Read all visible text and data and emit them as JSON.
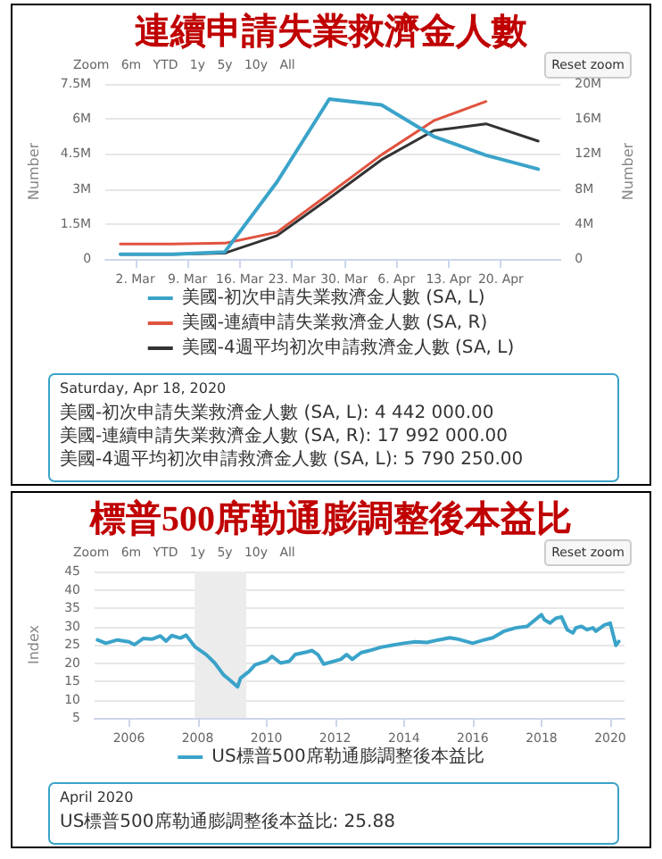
{
  "chart_data": [
    {
      "type": "line",
      "title": "連續申請失業救濟金人數",
      "ylabel": "Number",
      "y2label": "Number",
      "x": [
        "2020-02-29",
        "2020-03-07",
        "2020-03-14",
        "2020-03-21",
        "2020-03-28",
        "2020-04-04",
        "2020-04-11",
        "2020-04-18",
        "2020-04-25"
      ],
      "series": [
        {
          "name": "美國-初次申請失業救濟金人數 (SA, L)",
          "color": "#3aa3c9",
          "values": [
            200000,
            200000,
            300000,
            3300000,
            6850000,
            6600000,
            5250000,
            4442000,
            3850000
          ]
        },
        {
          "name": "美國-連續申請失業救濟金人數 (SA, R)",
          "color": "#e0533f",
          "axis": "y2",
          "values": [
            1700000,
            1700000,
            1800000,
            3050000,
            7450000,
            11900000,
            15800000,
            17992000,
            null
          ]
        },
        {
          "name": "美國-4週平均初次申請救濟金人數 (SA, L)",
          "color": "#333333",
          "values": [
            200000,
            200000,
            250000,
            1000000,
            2600000,
            4250000,
            5500000,
            5790250,
            5050000
          ]
        }
      ],
      "xlim": [
        "2020-02-27",
        "2020-04-28"
      ],
      "xticks": [
        {
          "value": "2020-03-02",
          "label": "2. Mar"
        },
        {
          "value": "2020-03-09",
          "label": "9. Mar"
        },
        {
          "value": "2020-03-16",
          "label": "16. Mar"
        },
        {
          "value": "2020-03-23",
          "label": "23. Mar"
        },
        {
          "value": "2020-03-30",
          "label": "30. Mar"
        },
        {
          "value": "2020-04-06",
          "label": "6. Apr"
        },
        {
          "value": "2020-04-13",
          "label": "13. Apr"
        },
        {
          "value": "2020-04-20",
          "label": "20. Apr"
        }
      ],
      "ylim": [
        0,
        7500000
      ],
      "yticks": [
        {
          "value": 0,
          "label": "0"
        },
        {
          "value": 1500000,
          "label": "1.5M"
        },
        {
          "value": 3000000,
          "label": "3M"
        },
        {
          "value": 4500000,
          "label": "4.5M"
        },
        {
          "value": 6000000,
          "label": "6M"
        },
        {
          "value": 7500000,
          "label": "7.5M"
        }
      ],
      "y2lim": [
        0,
        20000000
      ],
      "y2ticks": [
        {
          "value": 0,
          "label": "0"
        },
        {
          "value": 4000000,
          "label": "4M"
        },
        {
          "value": 8000000,
          "label": "8M"
        },
        {
          "value": 12000000,
          "label": "12M"
        },
        {
          "value": 16000000,
          "label": "16M"
        },
        {
          "value": 20000000,
          "label": "20M"
        }
      ],
      "grid": "y",
      "legend": "bottom",
      "marker": "none",
      "line_style": "solid",
      "annotations": [
        "Zoom   6m   YTD   1y   5y   10y   All",
        "Reset zoom",
        "Saturday, Apr 18, 2020",
        "美國-初次申請失業救濟金人數 (SA, L): 4 442 000.00",
        "美國-連續申請失業救濟金人數 (SA, R): 17 992 000.00",
        "美國-4週平均初次申請救濟金人數 (SA, L): 5 790 250.00"
      ]
    },
    {
      "type": "line",
      "title": "標普500席勒通膨調整後本益比",
      "ylabel": "Index",
      "x": [
        "2005-02",
        "2005-05",
        "2005-09",
        "2006-01",
        "2006-03",
        "2006-06",
        "2006-09",
        "2006-12",
        "2007-02",
        "2007-04",
        "2007-07",
        "2007-09",
        "2007-12",
        "2008-04",
        "2008-07",
        "2008-10",
        "2008-12",
        "2009-03",
        "2009-04",
        "2009-07",
        "2009-09",
        "2010-01",
        "2010-03",
        "2010-06",
        "2010-09",
        "2010-11",
        "2011-03",
        "2011-05",
        "2011-07",
        "2011-09",
        "2012-03",
        "2012-05",
        "2012-07",
        "2012-10",
        "2013-01",
        "2013-05",
        "2013-09",
        "2014-01",
        "2014-05",
        "2014-09",
        "2015-01",
        "2015-05",
        "2015-08",
        "2016-01",
        "2016-05",
        "2016-08",
        "2016-12",
        "2017-04",
        "2017-08",
        "2017-10",
        "2018-01",
        "2018-02",
        "2018-04",
        "2018-06",
        "2018-08",
        "2018-10",
        "2018-12",
        "2019-01",
        "2019-03",
        "2019-05",
        "2019-07",
        "2019-08",
        "2019-11",
        "2020-01",
        "2020-03",
        "2020-04"
      ],
      "series": [
        {
          "name": "US標普500席勒通膨調整後本益比",
          "color": "#3aa3c9",
          "values": [
            26.3,
            25.4,
            26.3,
            25.8,
            25.0,
            26.7,
            26.5,
            27.4,
            26.0,
            27.5,
            26.8,
            27.6,
            24.5,
            22.3,
            20.0,
            16.8,
            15.5,
            13.5,
            15.9,
            17.7,
            19.5,
            20.5,
            21.8,
            20.0,
            20.5,
            22.3,
            23.0,
            23.4,
            22.3,
            19.7,
            21.0,
            22.3,
            21.0,
            22.8,
            23.4,
            24.3,
            24.9,
            25.4,
            25.8,
            25.6,
            26.3,
            26.9,
            26.5,
            25.4,
            26.3,
            26.9,
            28.7,
            29.6,
            30.0,
            31.3,
            33.2,
            31.8,
            30.9,
            32.2,
            32.6,
            29.1,
            28.2,
            29.6,
            30.0,
            29.1,
            29.6,
            28.7,
            30.4,
            30.9,
            24.8,
            25.88
          ]
        }
      ],
      "xlim": [
        "2005-01",
        "2020-06"
      ],
      "xticks": [
        {
          "value": "2006",
          "label": "2006"
        },
        {
          "value": "2008",
          "label": "2008"
        },
        {
          "value": "2010",
          "label": "2010"
        },
        {
          "value": "2012",
          "label": "2012"
        },
        {
          "value": "2014",
          "label": "2014"
        },
        {
          "value": "2016",
          "label": "2016"
        },
        {
          "value": "2018",
          "label": "2018"
        },
        {
          "value": "2020",
          "label": "2020"
        }
      ],
      "ylim": [
        5,
        45
      ],
      "yticks": [
        5,
        10,
        15,
        20,
        25,
        30,
        35,
        40,
        45
      ],
      "bands": [
        {
          "axis": "x",
          "from": "2007-12",
          "to": "2009-06",
          "color": "#ececec"
        }
      ],
      "grid": "y",
      "legend": "bottom",
      "marker": "none",
      "line_style": "solid",
      "annotations": [
        "Zoom   6m   YTD   1y   5y   10y   All",
        "Reset zoom",
        "April 2020",
        "US標普500席勒通膨調整後本益比: 25.88"
      ]
    }
  ]
}
